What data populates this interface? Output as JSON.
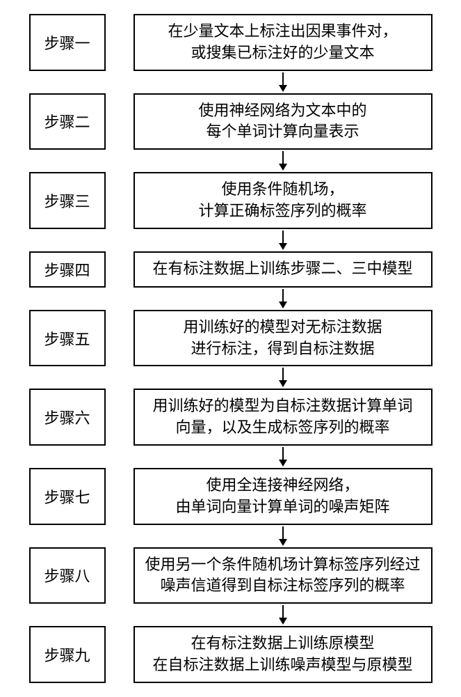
{
  "diagram": {
    "type": "flowchart",
    "background_color": "#ffffff",
    "border_color": "#000000",
    "text_color": "#000000",
    "font_family": "SimSun",
    "label_fontsize": 22,
    "content_fontsize": 22,
    "border_width": 2,
    "arrow_color": "#000000",
    "arrow_length": 28,
    "label_box_width": 110,
    "content_box_width": 430,
    "gap_between_boxes": 40,
    "steps": [
      {
        "label": "步骤一",
        "lines": [
          "在少量文本上标注出因果事件对，",
          "或搜集已标注好的少量文本"
        ]
      },
      {
        "label": "步骤二",
        "lines": [
          "使用神经网络为文本中的",
          "每个单词计算向量表示"
        ]
      },
      {
        "label": "步骤三",
        "lines": [
          "使用条件随机场，",
          "计算正确标签序列的概率"
        ]
      },
      {
        "label": "步骤四",
        "lines": [
          "在有标注数据上训练步骤二、三中模型"
        ]
      },
      {
        "label": "步骤五",
        "lines": [
          "用训练好的模型对无标注数据",
          "进行标注，得到自标注数据"
        ]
      },
      {
        "label": "步骤六",
        "lines": [
          "用训练好的模型为自标注数据计算单词",
          "向量，以及生成标签序列的概率"
        ]
      },
      {
        "label": "步骤七",
        "lines": [
          "使用全连接神经网络，",
          "由单词向量计算单词的噪声矩阵"
        ]
      },
      {
        "label": "步骤八",
        "lines": [
          "使用另一个条件随机场计算标签序列经过",
          "噪声信道得到自标注标签序列的概率"
        ]
      },
      {
        "label": "步骤九",
        "lines": [
          "在有标注数据上训练原模型",
          "在自标注数据上训练噪声模型与原模型"
        ]
      }
    ]
  }
}
